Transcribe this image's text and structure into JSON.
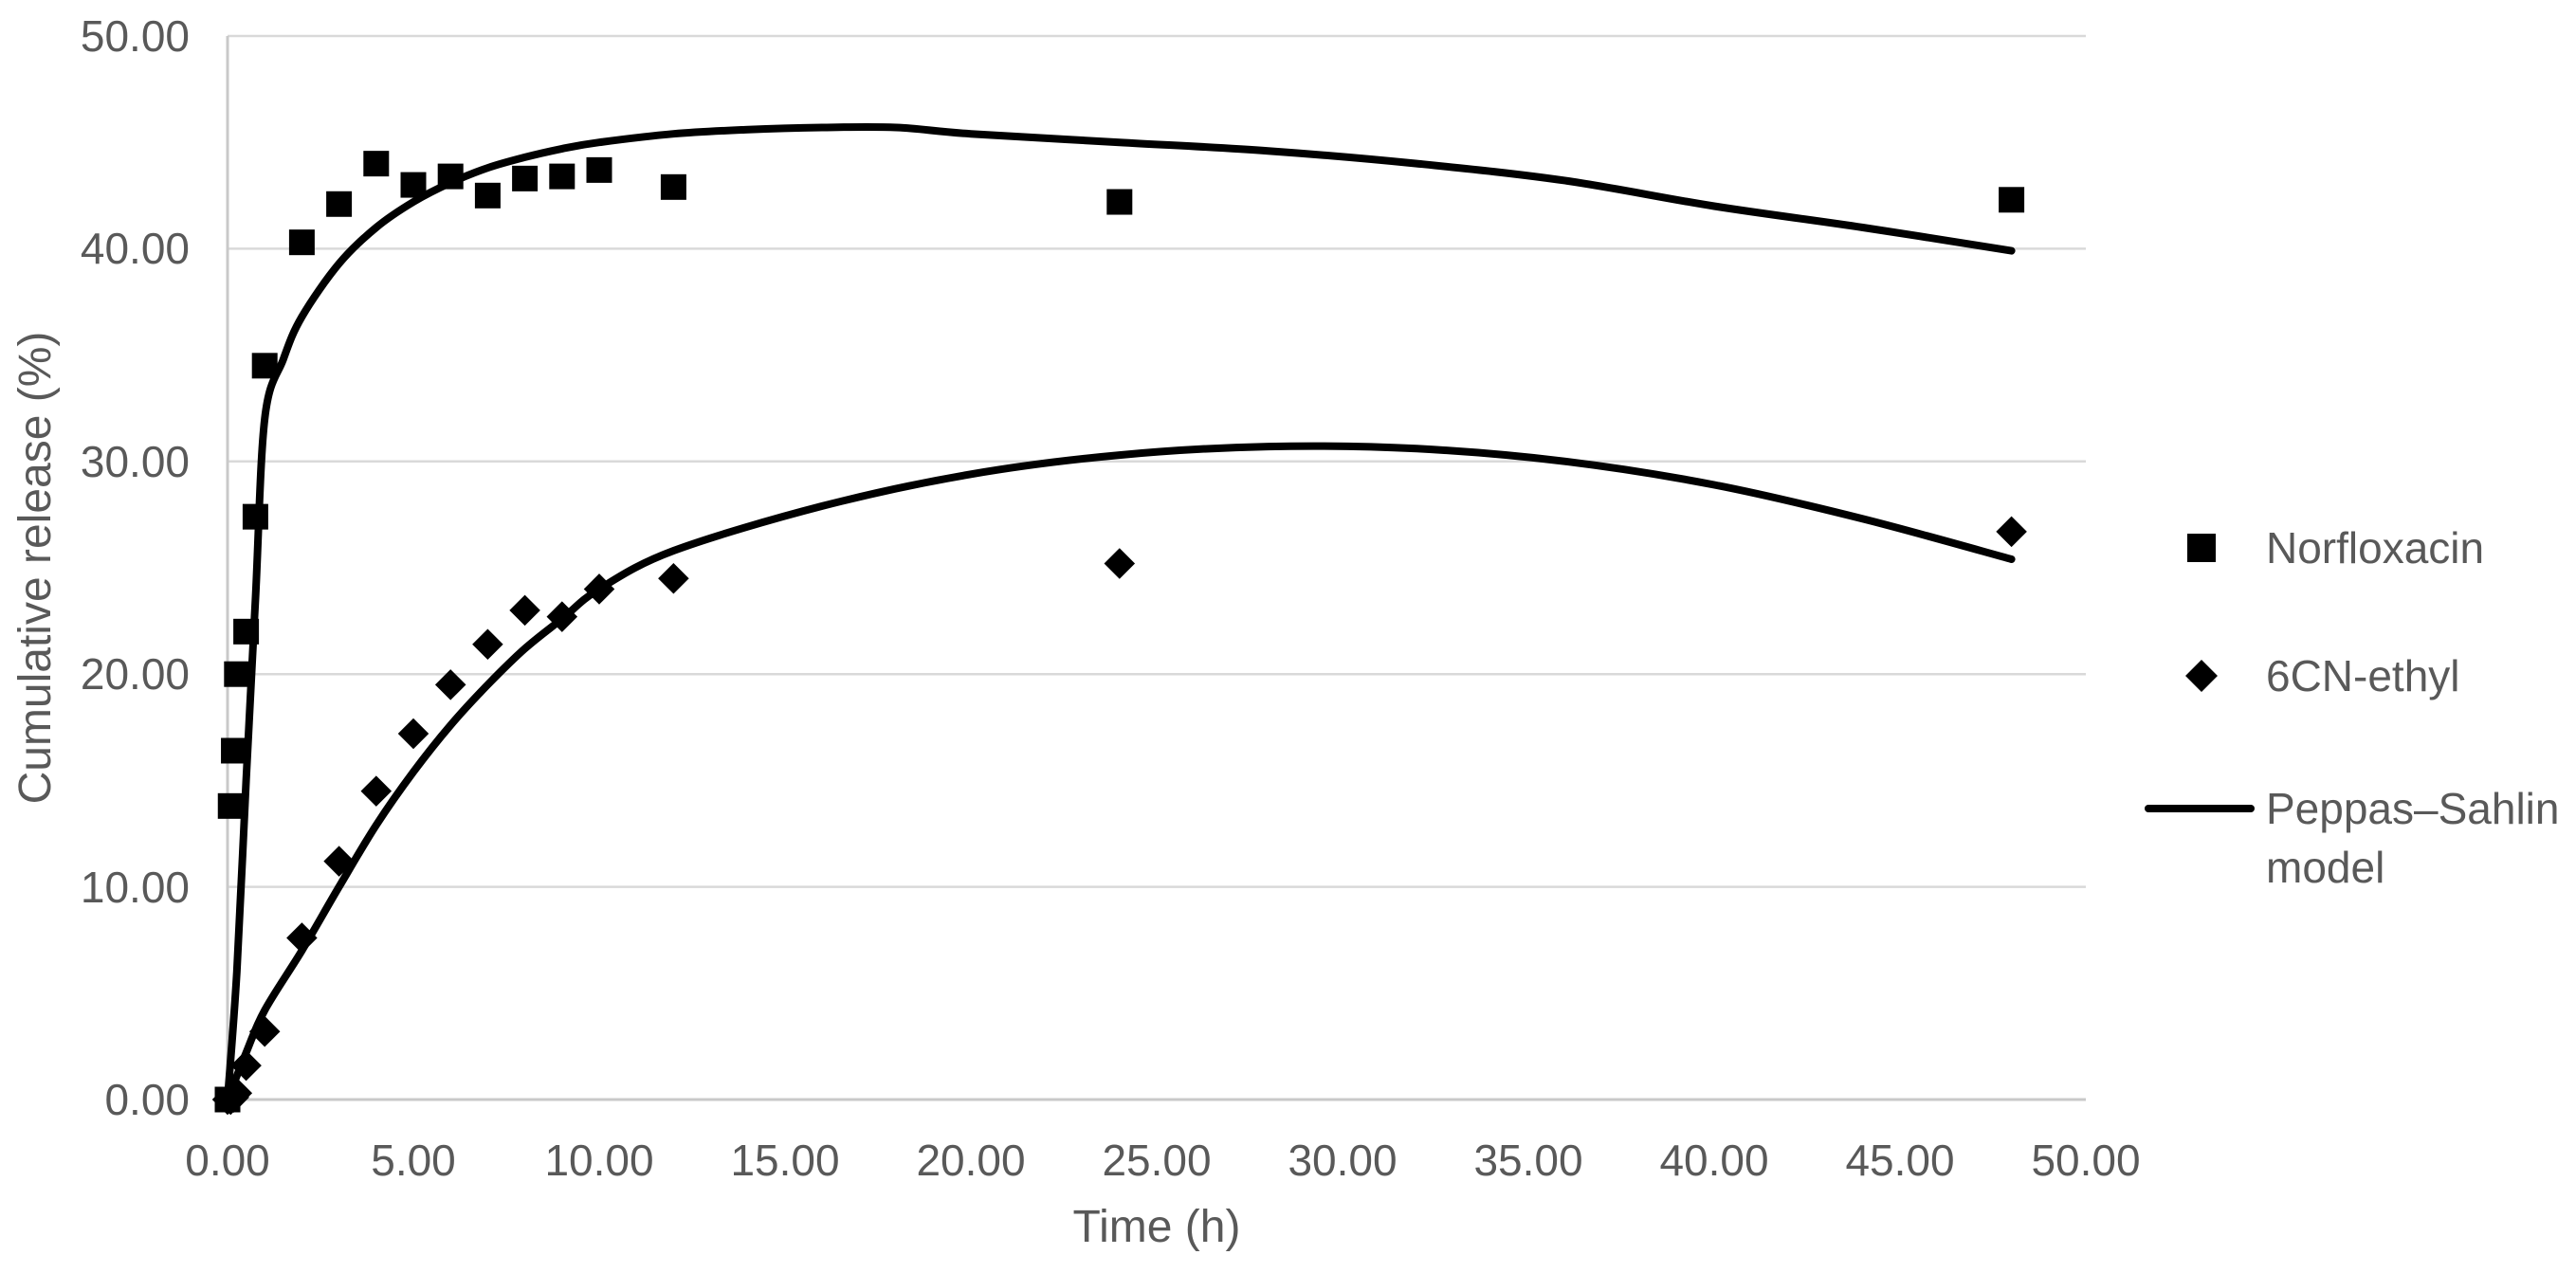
{
  "styles": {
    "background": "#FFFFFF",
    "text_color": "#595959",
    "grid_color": "#D9D9D9",
    "axis_color": "#C9C9C9",
    "marker_color": "#000000",
    "curve_color": "#000000"
  },
  "chart_data": {
    "type": "scatter",
    "title": "",
    "xlabel": "Time (h)",
    "ylabel": "Cumulative release (%)",
    "xlim": [
      0,
      50
    ],
    "ylim": [
      0,
      50
    ],
    "grid": "horizontal",
    "legend_position": "right",
    "x_ticks": [
      {
        "value": 0,
        "label": "0.00"
      },
      {
        "value": 5,
        "label": "5.00"
      },
      {
        "value": 10,
        "label": "10.00"
      },
      {
        "value": 15,
        "label": "15.00"
      },
      {
        "value": 20,
        "label": "20.00"
      },
      {
        "value": 25,
        "label": "25.00"
      },
      {
        "value": 30,
        "label": "30.00"
      },
      {
        "value": 35,
        "label": "35.00"
      },
      {
        "value": 40,
        "label": "40.00"
      },
      {
        "value": 45,
        "label": "45.00"
      },
      {
        "value": 50,
        "label": "50.00"
      }
    ],
    "y_ticks": [
      {
        "value": 0,
        "label": "0.00"
      },
      {
        "value": 10,
        "label": "10.00"
      },
      {
        "value": 20,
        "label": "20.00"
      },
      {
        "value": 30,
        "label": "30.00"
      },
      {
        "value": 40,
        "label": "40.00"
      },
      {
        "value": 50,
        "label": "50.00"
      }
    ],
    "series": [
      {
        "name": "Norfloxacin",
        "marker": "square",
        "color": "#000000",
        "points": [
          [
            0,
            0.0
          ],
          [
            0.083,
            13.8
          ],
          [
            0.167,
            16.4
          ],
          [
            0.25,
            20.0
          ],
          [
            0.5,
            22.0
          ],
          [
            0.75,
            27.4
          ],
          [
            1,
            34.5
          ],
          [
            2,
            40.3
          ],
          [
            3,
            42.1
          ],
          [
            4,
            44.0
          ],
          [
            5,
            43.0
          ],
          [
            6,
            43.4
          ],
          [
            7,
            42.5
          ],
          [
            8,
            43.3
          ],
          [
            9,
            43.4
          ],
          [
            10,
            43.7
          ],
          [
            12,
            42.9
          ],
          [
            24,
            42.2
          ],
          [
            48,
            42.3
          ]
        ]
      },
      {
        "name": "6CN-ethyl",
        "marker": "diamond",
        "color": "#000000",
        "points": [
          [
            0,
            0.0
          ],
          [
            0.083,
            0.0
          ],
          [
            0.167,
            0.1
          ],
          [
            0.25,
            0.3
          ],
          [
            0.5,
            1.6
          ],
          [
            1,
            3.2
          ],
          [
            2,
            7.6
          ],
          [
            3,
            11.2
          ],
          [
            4,
            14.5
          ],
          [
            5,
            17.2
          ],
          [
            6,
            19.5
          ],
          [
            7,
            21.4
          ],
          [
            8,
            23.0
          ],
          [
            9,
            22.7
          ],
          [
            10,
            24.0
          ],
          [
            12,
            24.5
          ],
          [
            24,
            25.2
          ],
          [
            48,
            26.7
          ]
        ]
      }
    ],
    "model_curves": [
      {
        "name": "Peppas–Sahlin model (Norfloxacin)",
        "series": "Norfloxacin",
        "color": "#000000",
        "points": [
          [
            0,
            0.0
          ],
          [
            0.25,
            6.0
          ],
          [
            0.5,
            15.0
          ],
          [
            0.75,
            23.5
          ],
          [
            1,
            32.0
          ],
          [
            1.5,
            34.8
          ],
          [
            2,
            36.8
          ],
          [
            3,
            39.3
          ],
          [
            4,
            41.0
          ],
          [
            5,
            42.2
          ],
          [
            6,
            43.1
          ],
          [
            7,
            43.8
          ],
          [
            8,
            44.3
          ],
          [
            9,
            44.7
          ],
          [
            10,
            45.0
          ],
          [
            12,
            45.4
          ],
          [
            14,
            45.6
          ],
          [
            16,
            45.7
          ],
          [
            18,
            45.7
          ],
          [
            20,
            45.4
          ],
          [
            24,
            45.0
          ],
          [
            28,
            44.6
          ],
          [
            32,
            44.0
          ],
          [
            36,
            43.2
          ],
          [
            40,
            42.0
          ],
          [
            44,
            41.0
          ],
          [
            48,
            39.9
          ]
        ]
      },
      {
        "name": "Peppas–Sahlin model (6CN-ethyl)",
        "series": "6CN-ethyl",
        "color": "#000000",
        "points": [
          [
            0,
            0.0
          ],
          [
            0.5,
            2.2
          ],
          [
            1,
            4.2
          ],
          [
            2,
            7.0
          ],
          [
            3,
            10.0
          ],
          [
            4,
            12.9
          ],
          [
            5,
            15.4
          ],
          [
            6,
            17.6
          ],
          [
            7,
            19.5
          ],
          [
            8,
            21.2
          ],
          [
            9,
            22.6
          ],
          [
            10,
            24.0
          ],
          [
            12,
            25.8
          ],
          [
            16,
            27.9
          ],
          [
            20,
            29.4
          ],
          [
            24,
            30.3
          ],
          [
            28,
            30.7
          ],
          [
            32,
            30.6
          ],
          [
            36,
            30.0
          ],
          [
            40,
            28.9
          ],
          [
            44,
            27.3
          ],
          [
            48,
            25.4
          ]
        ]
      }
    ],
    "legend": [
      {
        "label": "Norfloxacin",
        "marker": "square"
      },
      {
        "label": "6CN-ethyl",
        "marker": "diamond"
      },
      {
        "label": "Peppas–Sahlin model",
        "marker": "line"
      }
    ]
  }
}
